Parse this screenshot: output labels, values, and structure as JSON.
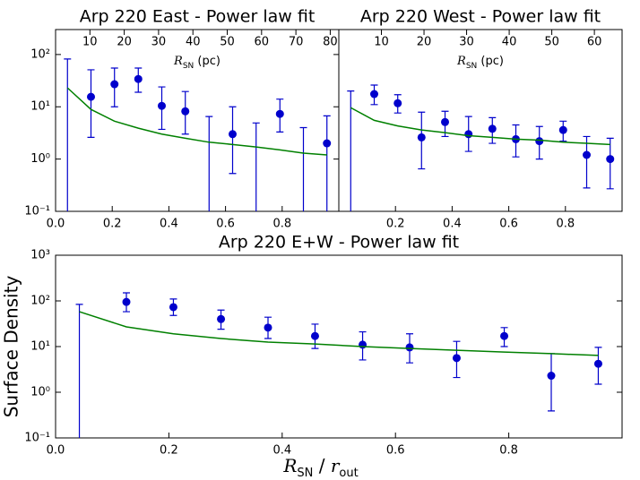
{
  "chart_data": [
    {
      "type": "errorbar",
      "title": "Arp 220 East - Power law fit",
      "x": [
        0.042,
        0.125,
        0.208,
        0.292,
        0.375,
        0.458,
        0.542,
        0.625,
        0.708,
        0.792,
        0.875,
        0.958
      ],
      "xlim": [
        0,
        1
      ],
      "xticks": [
        {
          "value": 0,
          "label": "0.0"
        },
        0.2,
        0.4,
        0.6,
        0.8
      ],
      "ylim": [
        0.1,
        300
      ],
      "log_y": true,
      "yticks": [
        {
          "value": 0.1,
          "label": "10⁻¹"
        },
        {
          "value": 1,
          "label": "10⁰"
        },
        {
          "value": 10,
          "label": "10¹"
        },
        {
          "value": 100,
          "label": "10²"
        }
      ],
      "x2lim": [
        0,
        82.5
      ],
      "x2ticks": [
        10,
        20,
        30,
        40,
        50,
        60,
        70,
        80
      ],
      "x2label": [
        "R",
        "SN",
        " (pc)"
      ],
      "series": [
        {
          "kind": "errorbar",
          "color": "#0000cc",
          "values": [
            null,
            15.5,
            27,
            34,
            10.4,
            8.2,
            null,
            3.0,
            null,
            7.3,
            null,
            2.0
          ],
          "lower": [
            0.01,
            2.6,
            10,
            19,
            3.7,
            3.0,
            0.01,
            0.53,
            0.01,
            3.3,
            0.01,
            0.01
          ],
          "upper": [
            82,
            51,
            55,
            55,
            24,
            19.6,
            6.5,
            10,
            4.9,
            14,
            4.0,
            6.7
          ]
        },
        {
          "kind": "line",
          "color": "#008000",
          "values": [
            23,
            8.9,
            5.3,
            3.9,
            3.0,
            2.5,
            2.1,
            1.9,
            1.7,
            1.5,
            1.3,
            1.2
          ]
        }
      ]
    },
    {
      "type": "errorbar",
      "title": "Arp 220 West - Power law fit",
      "x": [
        0.042,
        0.125,
        0.208,
        0.292,
        0.375,
        0.458,
        0.542,
        0.625,
        0.708,
        0.792,
        0.875,
        0.958
      ],
      "xlim": [
        0,
        1
      ],
      "xticks": [
        0.2,
        0.4,
        0.6,
        0.8
      ],
      "ylim": [
        0.1,
        300
      ],
      "log_y": true,
      "x2lim": [
        0,
        66.5
      ],
      "x2ticks": [
        10,
        20,
        30,
        40,
        50,
        60
      ],
      "x2label": [
        "R",
        "SN",
        " (pc)"
      ],
      "series": [
        {
          "kind": "errorbar",
          "color": "#0000cc",
          "values": [
            null,
            17.5,
            11.7,
            2.6,
            5.1,
            3.0,
            3.8,
            2.4,
            2.2,
            3.6,
            1.2,
            1.0
          ],
          "lower": [
            0.01,
            11,
            7.6,
            0.65,
            2.7,
            1.4,
            2.0,
            1.1,
            1.0,
            2.2,
            0.28,
            0.27
          ],
          "upper": [
            20,
            26,
            17,
            7.9,
            8.2,
            6.5,
            6.2,
            4.5,
            4.2,
            5.3,
            2.7,
            2.5
          ]
        },
        {
          "kind": "line",
          "color": "#008000",
          "values": [
            9.6,
            5.5,
            4.3,
            3.6,
            3.2,
            2.8,
            2.6,
            2.4,
            2.3,
            2.1,
            2.0,
            1.9
          ]
        }
      ]
    },
    {
      "type": "errorbar",
      "title": "Arp 220 E+W - Power law fit",
      "x": [
        0.042,
        0.125,
        0.208,
        0.292,
        0.375,
        0.458,
        0.542,
        0.625,
        0.708,
        0.792,
        0.875,
        0.958
      ],
      "xlim": [
        0,
        1
      ],
      "xticks": [
        {
          "value": 0,
          "label": "0.0"
        },
        0.2,
        0.4,
        0.6,
        0.8
      ],
      "ylim": [
        0.1,
        1000
      ],
      "log_y": true,
      "yticks": [
        {
          "value": 0.1,
          "label": "10⁻¹"
        },
        {
          "value": 1,
          "label": "10⁰"
        },
        {
          "value": 10,
          "label": "10¹"
        },
        {
          "value": 100,
          "label": "10²"
        },
        {
          "value": 1000,
          "label": "10³"
        }
      ],
      "ylabel": "Surface Density",
      "xlabel": [
        "R",
        "SN",
        " / ",
        "r",
        "out"
      ],
      "series": [
        {
          "kind": "errorbar",
          "color": "#0000cc",
          "values": [
            null,
            95,
            73,
            40,
            26,
            17,
            11,
            9.6,
            5.6,
            17,
            2.3,
            4.2
          ],
          "lower": [
            0.01,
            58,
            48,
            24,
            15,
            9.1,
            5.1,
            4.4,
            2.1,
            10,
            0.39,
            1.5
          ],
          "upper": [
            84,
            150,
            110,
            63,
            44,
            31,
            21,
            19,
            13,
            26,
            7,
            9.6
          ]
        },
        {
          "kind": "line",
          "color": "#008000",
          "values": [
            58,
            27,
            19,
            15,
            12.5,
            11.4,
            10,
            9.1,
            8.3,
            7.6,
            7.0,
            6.4
          ]
        }
      ]
    }
  ]
}
